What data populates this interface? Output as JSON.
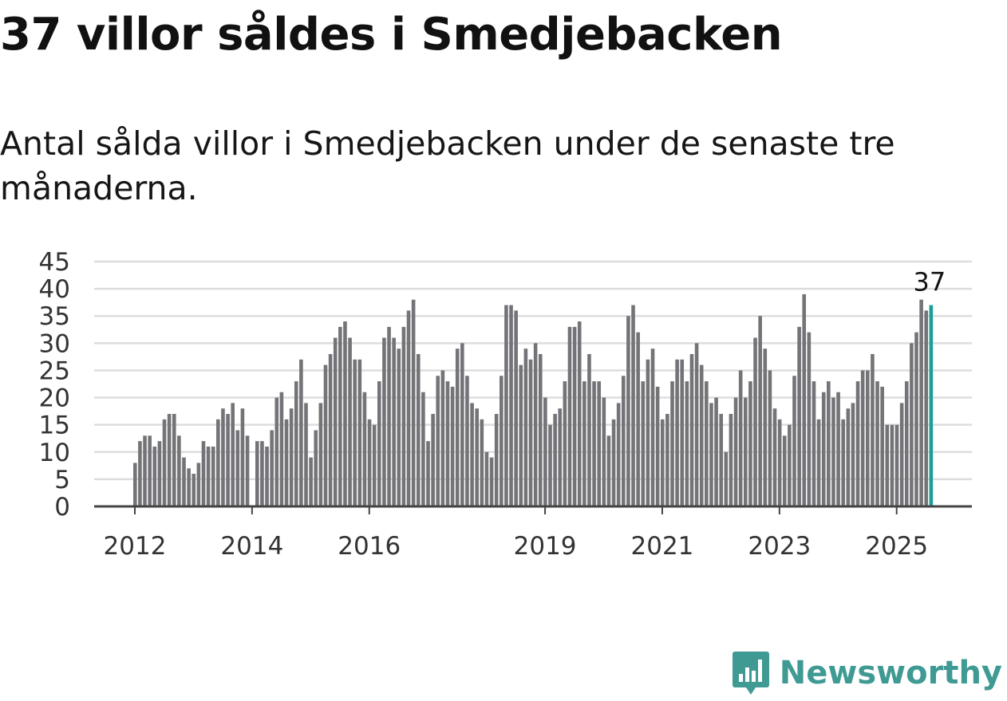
{
  "header": {
    "title": "37 villor såldes i Smedjebacken",
    "subtitle": "Antal sålda villor i Smedjebacken under de senaste tre månaderna."
  },
  "brand": {
    "name": "Newsworthy",
    "icon": "newsworthy-logo-icon",
    "color": "#3f9a94"
  },
  "colors": {
    "bar": "#747378",
    "highlight": "#1a9e97",
    "grid": "#dddddd",
    "axis": "#444444"
  },
  "chart_data": {
    "type": "bar",
    "title": "",
    "xlabel": "",
    "ylabel": "",
    "ylim": [
      0,
      45
    ],
    "yticks": [
      "0",
      "5",
      "10",
      "15",
      "20",
      "25",
      "30",
      "35",
      "40",
      "45"
    ],
    "grid": true,
    "x_start": "2012-01",
    "x_end": "2025-07",
    "x_tick_labels": [
      "2012",
      "2014",
      "2016",
      "2019",
      "2021",
      "2023",
      "2025"
    ],
    "highlight_label": "37",
    "series": [
      {
        "values": [
          8,
          12,
          13,
          13,
          11,
          12,
          16,
          17,
          17,
          13,
          9,
          7,
          6,
          8,
          12,
          11,
          11,
          16,
          18,
          17,
          19,
          14,
          18,
          13,
          0,
          12,
          12,
          11,
          14,
          20,
          21,
          16,
          18,
          23,
          27,
          19,
          9,
          14,
          19,
          26,
          28,
          31,
          33,
          34,
          31,
          27,
          27,
          21,
          16,
          15,
          23,
          31,
          33,
          31,
          29,
          33,
          36,
          38,
          28,
          21,
          12,
          17,
          24,
          25,
          23,
          22,
          29,
          30,
          24,
          19,
          18,
          16,
          10,
          9,
          17,
          24,
          37,
          37,
          36,
          26,
          29,
          27,
          30,
          28,
          20,
          15,
          17,
          18,
          23,
          33,
          33,
          34,
          23,
          28,
          23,
          23,
          20,
          13,
          16,
          19,
          24,
          35,
          37,
          32,
          23,
          27,
          29,
          22,
          16,
          17,
          23,
          27,
          27,
          23,
          28,
          30,
          26,
          23,
          19,
          20,
          17,
          10,
          17,
          20,
          25,
          20,
          23,
          31,
          35,
          29,
          25,
          18,
          16,
          13,
          15,
          24,
          33,
          39,
          32,
          23,
          16,
          21,
          23,
          20,
          21,
          16,
          18,
          19,
          23,
          25,
          25,
          28,
          23,
          22,
          15,
          15,
          15,
          19,
          23,
          30,
          32,
          38,
          36,
          37
        ]
      }
    ]
  }
}
